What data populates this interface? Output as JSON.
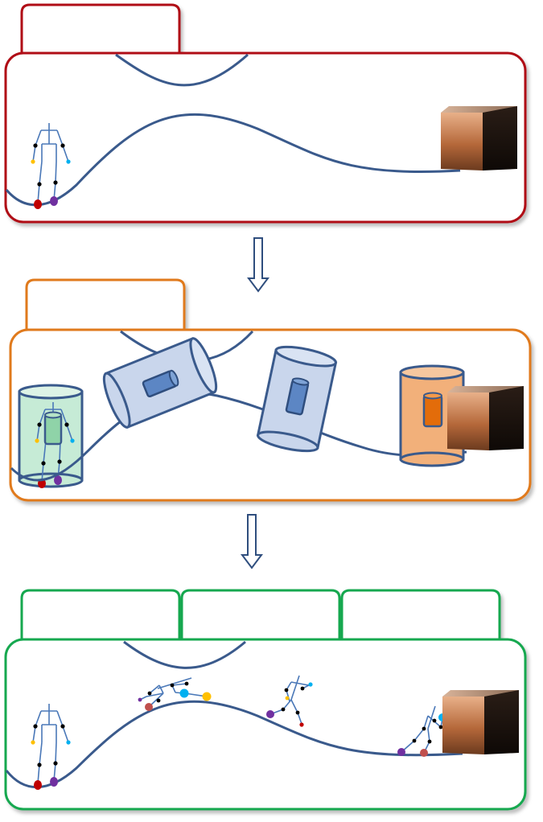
{
  "colors": {
    "stage1": "#B01116",
    "stage2": "#E07A1F",
    "stage3": "#14A850",
    "curve": "#3A5A8C",
    "arrow": "#2F4E7E",
    "joint_red": "#C00000",
    "joint_purple": "#7030A0",
    "joint_yellow": "#FFC000",
    "joint_cyan": "#00B0F0",
    "joint_rose": "#C0504D",
    "cyl_blue_fill": "#C9D6EC",
    "cyl_green_fill": "#C6EBD6",
    "cyl_orange_fill": "#F2B07A",
    "box_light": "#E8B089",
    "box_mid": "#B5683A",
    "box_dark": "#1E1410"
  },
  "stages": [
    {
      "tabs": [
        ""
      ],
      "panel_color": "stage1"
    },
    {
      "tabs": [
        ""
      ],
      "panel_color": "stage2"
    },
    {
      "tabs": [
        "",
        "",
        ""
      ],
      "panel_color": "stage3"
    }
  ],
  "icons": [
    "human-skeleton-icon",
    "object-cube-icon",
    "cylinder-icon",
    "down-arrow-icon"
  ]
}
